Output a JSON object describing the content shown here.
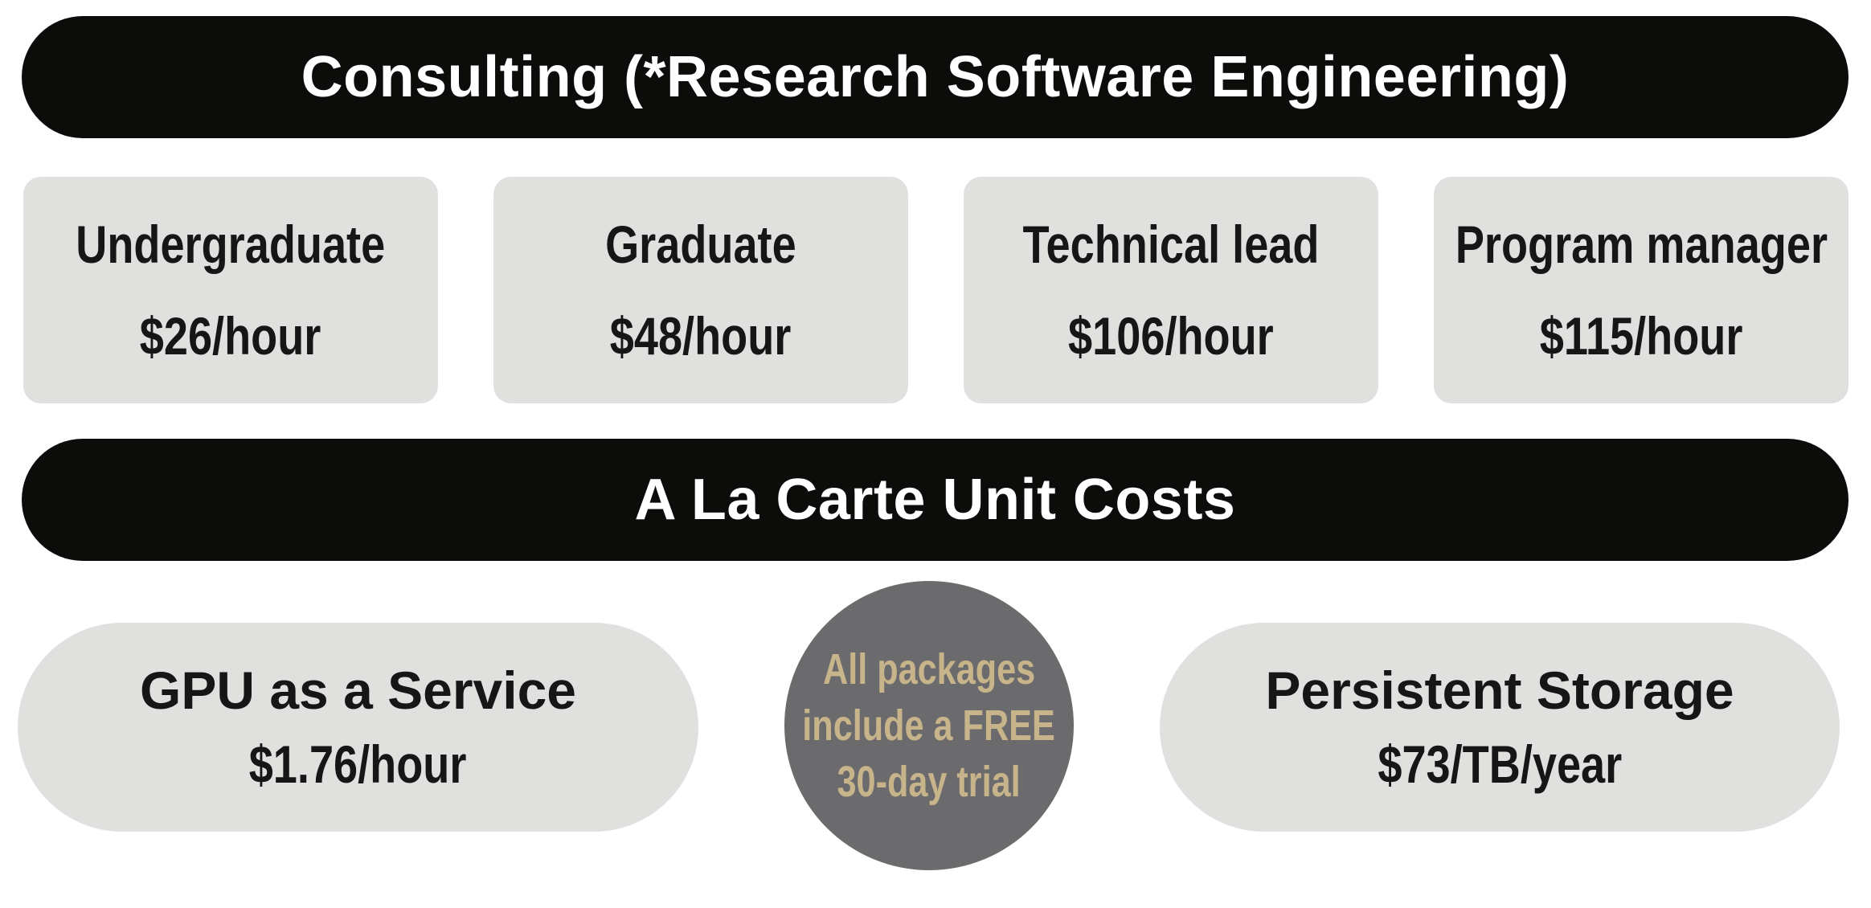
{
  "consulting": {
    "title": "Consulting (*Research Software Engineering)",
    "rates": [
      {
        "role": "Undergraduate",
        "price": "$26/hour"
      },
      {
        "role": "Graduate",
        "price": "$48/hour"
      },
      {
        "role": "Technical lead",
        "price": "$106/hour"
      },
      {
        "role": "Program manager",
        "price": "$115/hour"
      }
    ]
  },
  "alacarte": {
    "title": "A La Carte Unit Costs",
    "gpu": {
      "title": "GPU as a Service",
      "price": "$1.76/hour"
    },
    "storage": {
      "title": "Persistent Storage",
      "price": "$73/TB/year"
    },
    "trial": {
      "lines": [
        "All packages",
        "include a FREE",
        "30-day trial"
      ]
    }
  },
  "colors": {
    "banner_bg": "#0c0c0b",
    "card_bg": "#e0e0de",
    "circle_bg": "#6b6b6d",
    "circle_text": "#c7b48a"
  }
}
